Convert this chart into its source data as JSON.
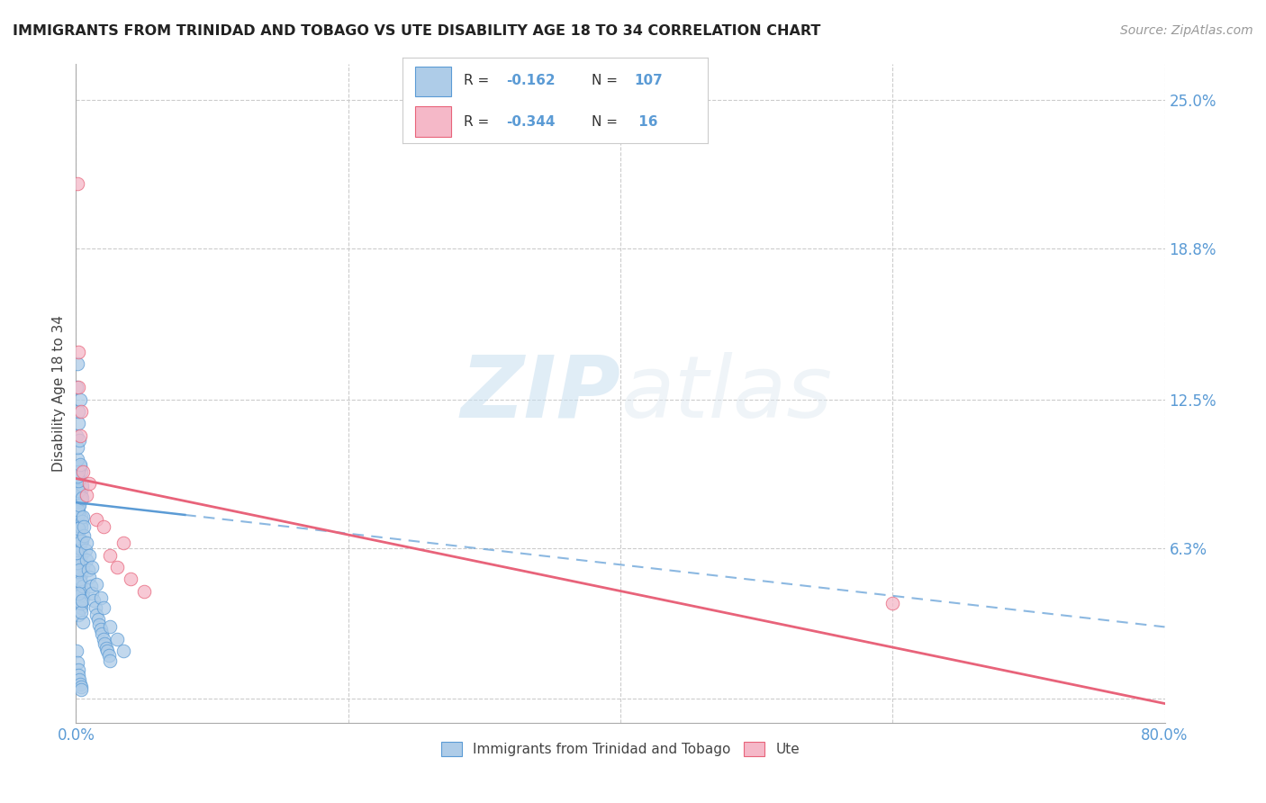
{
  "title": "IMMIGRANTS FROM TRINIDAD AND TOBAGO VS UTE DISABILITY AGE 18 TO 34 CORRELATION CHART",
  "source": "Source: ZipAtlas.com",
  "ylabel": "Disability Age 18 to 34",
  "xlim": [
    0.0,
    0.8
  ],
  "ylim": [
    -0.01,
    0.265
  ],
  "yticks": [
    0.0,
    0.063,
    0.125,
    0.188,
    0.25
  ],
  "ytick_labels": [
    "",
    "6.3%",
    "12.5%",
    "18.8%",
    "25.0%"
  ],
  "xticks": [
    0.0,
    0.2,
    0.4,
    0.6,
    0.8
  ],
  "xtick_labels": [
    "0.0%",
    "",
    "",
    "",
    "80.0%"
  ],
  "blue_color": "#aecce8",
  "pink_color": "#f5b8c8",
  "blue_line_color": "#5b9bd5",
  "pink_line_color": "#e8637a",
  "blue_series_label": "Immigrants from Trinidad and Tobago",
  "pink_series_label": "Ute",
  "watermark_zip": "ZIP",
  "watermark_atlas": "atlas",
  "blue_x": [
    0.0005,
    0.001,
    0.0015,
    0.002,
    0.0025,
    0.003,
    0.0035,
    0.004,
    0.0045,
    0.005,
    0.0005,
    0.001,
    0.0015,
    0.002,
    0.0025,
    0.003,
    0.0035,
    0.004,
    0.0045,
    0.005,
    0.0005,
    0.001,
    0.0015,
    0.002,
    0.0025,
    0.003,
    0.0035,
    0.004,
    0.0045,
    0.005,
    0.0005,
    0.001,
    0.0015,
    0.002,
    0.0025,
    0.003,
    0.0035,
    0.004,
    0.0045,
    0.005,
    0.0005,
    0.001,
    0.0015,
    0.002,
    0.0025,
    0.003,
    0.0035,
    0.004,
    0.0045,
    0.005,
    0.0005,
    0.001,
    0.0015,
    0.002,
    0.0025,
    0.003,
    0.0035,
    0.004,
    0.0045,
    0.005,
    0.006,
    0.007,
    0.008,
    0.009,
    0.01,
    0.011,
    0.012,
    0.013,
    0.014,
    0.015,
    0.016,
    0.017,
    0.018,
    0.019,
    0.02,
    0.021,
    0.022,
    0.023,
    0.024,
    0.025,
    0.006,
    0.008,
    0.01,
    0.012,
    0.015,
    0.018,
    0.02,
    0.025,
    0.03,
    0.035,
    0.001,
    0.0005,
    0.001,
    0.0015,
    0.002,
    0.0025,
    0.003,
    0.0005,
    0.001,
    0.0015,
    0.002,
    0.0025,
    0.003,
    0.0035,
    0.004,
    0.0005,
    0.001,
    0.002,
    0.003
  ],
  "blue_y": [
    0.075,
    0.082,
    0.068,
    0.078,
    0.071,
    0.065,
    0.085,
    0.06,
    0.088,
    0.055,
    0.07,
    0.062,
    0.08,
    0.058,
    0.092,
    0.048,
    0.076,
    0.052,
    0.066,
    0.045,
    0.073,
    0.086,
    0.059,
    0.077,
    0.064,
    0.05,
    0.083,
    0.056,
    0.089,
    0.042,
    0.069,
    0.079,
    0.053,
    0.087,
    0.043,
    0.063,
    0.095,
    0.038,
    0.074,
    0.047,
    0.067,
    0.057,
    0.091,
    0.035,
    0.081,
    0.049,
    0.072,
    0.04,
    0.084,
    0.032,
    0.061,
    0.093,
    0.044,
    0.071,
    0.054,
    0.097,
    0.036,
    0.066,
    0.041,
    0.076,
    0.068,
    0.062,
    0.058,
    0.054,
    0.051,
    0.047,
    0.044,
    0.041,
    0.038,
    0.035,
    0.033,
    0.031,
    0.029,
    0.027,
    0.025,
    0.023,
    0.021,
    0.02,
    0.018,
    0.016,
    0.072,
    0.065,
    0.06,
    0.055,
    0.048,
    0.042,
    0.038,
    0.03,
    0.025,
    0.02,
    0.1,
    0.11,
    0.105,
    0.095,
    0.115,
    0.108,
    0.098,
    0.02,
    0.015,
    0.012,
    0.01,
    0.008,
    0.006,
    0.005,
    0.004,
    0.13,
    0.14,
    0.12,
    0.125
  ],
  "pink_x": [
    0.001,
    0.002,
    0.003,
    0.004,
    0.005,
    0.008,
    0.01,
    0.015,
    0.02,
    0.025,
    0.03,
    0.035,
    0.04,
    0.05,
    0.6,
    0.002
  ],
  "pink_y": [
    0.215,
    0.13,
    0.11,
    0.12,
    0.095,
    0.085,
    0.09,
    0.075,
    0.072,
    0.06,
    0.055,
    0.065,
    0.05,
    0.045,
    0.04,
    0.145
  ],
  "blue_trend_x0": 0.0,
  "blue_trend_x_solid_end": 0.08,
  "blue_trend_x1": 0.8,
  "blue_trend_y0": 0.082,
  "blue_trend_y1": 0.03,
  "pink_trend_x0": 0.0,
  "pink_trend_x1": 0.8,
  "pink_trend_y0": 0.092,
  "pink_trend_y1": -0.002
}
